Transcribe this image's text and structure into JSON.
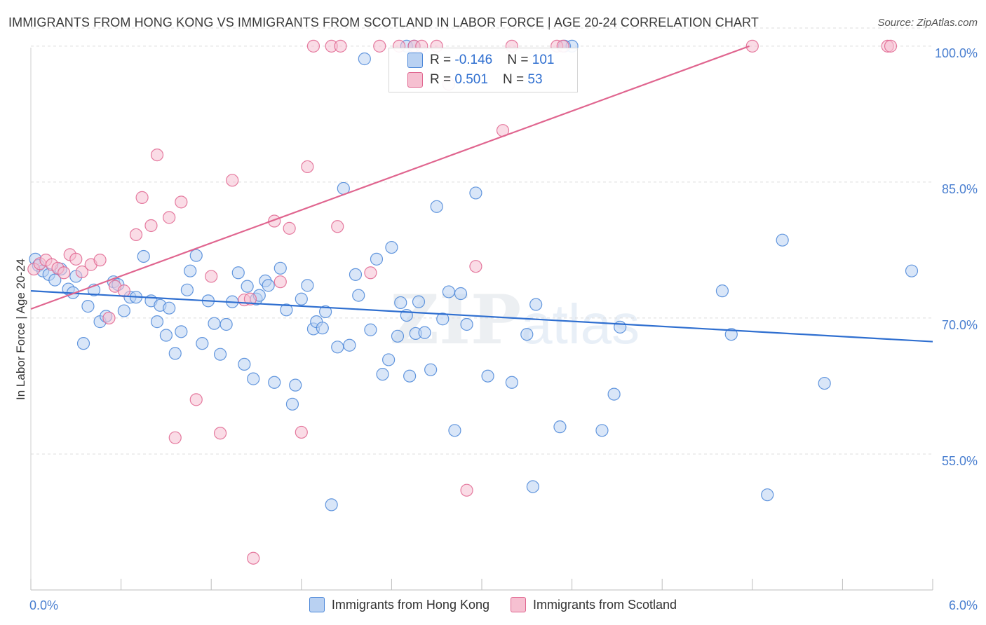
{
  "title": "IMMIGRANTS FROM HONG KONG VS IMMIGRANTS FROM SCOTLAND IN LABOR FORCE | AGE 20-24 CORRELATION CHART",
  "source": "Source: ZipAtlas.com",
  "watermark": {
    "bold": "ZIP",
    "thin": "atlas"
  },
  "colors": {
    "blue": "#4a86d8",
    "blue_fill": "#b9d1f2",
    "pink": "#e0658f",
    "pink_fill": "#f6c0d1",
    "tick": "#4a7fd0"
  },
  "stats": [
    {
      "r_label": "R = ",
      "r": "-0.146",
      "n_label": "N = ",
      "n": "101"
    },
    {
      "r_label": "R = ",
      "r": " 0.501",
      "n_label": "N = ",
      "n": " 53"
    }
  ],
  "legend": [
    {
      "label": "Immigrants from Hong Kong"
    },
    {
      "label": "Immigrants from Scotland"
    }
  ],
  "chart_data": {
    "type": "scatter",
    "title": "IMMIGRANTS FROM HONG KONG VS IMMIGRANTS FROM SCOTLAND IN LABOR FORCE | AGE 20-24 CORRELATION CHART",
    "xlabel": "",
    "ylabel": "In Labor Force | Age 20-24",
    "xlim": [
      0,
      6
    ],
    "ylim": [
      40,
      102
    ],
    "x_tick_labels": [
      "0.0%",
      "6.0%"
    ],
    "y_ticks": [
      55,
      70,
      85,
      100
    ],
    "y_tick_labels": [
      "55.0%",
      "70.0%",
      "85.0%",
      "100.0%"
    ],
    "grid": true,
    "legend_position": "bottom",
    "series": [
      {
        "name": "Immigrants from Hong Kong",
        "trend": {
          "x": [
            0,
            6
          ],
          "y": [
            73.0,
            67.4
          ]
        },
        "points": [
          [
            0.03,
            76.5
          ],
          [
            0.05,
            75.8
          ],
          [
            0.08,
            75.2
          ],
          [
            0.12,
            74.8
          ],
          [
            0.16,
            74.2
          ],
          [
            0.2,
            75.4
          ],
          [
            0.25,
            73.2
          ],
          [
            0.28,
            72.8
          ],
          [
            0.3,
            74.6
          ],
          [
            0.35,
            67.2
          ],
          [
            0.38,
            71.3
          ],
          [
            0.42,
            73.1
          ],
          [
            0.46,
            69.6
          ],
          [
            0.5,
            70.2
          ],
          [
            0.55,
            74.0
          ],
          [
            0.58,
            73.7
          ],
          [
            0.62,
            70.8
          ],
          [
            0.66,
            72.3
          ],
          [
            0.7,
            72.3
          ],
          [
            0.75,
            76.8
          ],
          [
            0.8,
            71.9
          ],
          [
            0.84,
            69.6
          ],
          [
            0.86,
            71.4
          ],
          [
            0.9,
            68.1
          ],
          [
            0.92,
            71.1
          ],
          [
            0.96,
            66.1
          ],
          [
            1.0,
            68.5
          ],
          [
            1.04,
            73.1
          ],
          [
            1.06,
            75.2
          ],
          [
            1.1,
            76.9
          ],
          [
            1.14,
            67.2
          ],
          [
            1.18,
            71.9
          ],
          [
            1.22,
            69.4
          ],
          [
            1.26,
            66.0
          ],
          [
            1.3,
            69.3
          ],
          [
            1.34,
            71.8
          ],
          [
            1.38,
            75.0
          ],
          [
            1.42,
            64.9
          ],
          [
            1.44,
            73.5
          ],
          [
            1.48,
            63.3
          ],
          [
            1.5,
            72.1
          ],
          [
            1.52,
            72.5
          ],
          [
            1.56,
            74.1
          ],
          [
            1.58,
            73.6
          ],
          [
            1.62,
            62.9
          ],
          [
            1.66,
            75.5
          ],
          [
            1.7,
            70.9
          ],
          [
            1.74,
            60.5
          ],
          [
            1.76,
            62.6
          ],
          [
            1.8,
            72.1
          ],
          [
            1.84,
            73.6
          ],
          [
            1.88,
            68.8
          ],
          [
            1.9,
            69.6
          ],
          [
            1.94,
            68.9
          ],
          [
            1.96,
            70.7
          ],
          [
            2.0,
            49.4
          ],
          [
            2.04,
            66.8
          ],
          [
            2.08,
            84.3
          ],
          [
            2.12,
            67.0
          ],
          [
            2.16,
            74.8
          ],
          [
            2.18,
            72.5
          ],
          [
            2.22,
            98.6
          ],
          [
            2.26,
            68.7
          ],
          [
            2.3,
            76.5
          ],
          [
            2.34,
            63.8
          ],
          [
            2.38,
            65.4
          ],
          [
            2.4,
            77.8
          ],
          [
            2.44,
            68.0
          ],
          [
            2.46,
            71.7
          ],
          [
            2.5,
            70.3
          ],
          [
            2.52,
            63.6
          ],
          [
            2.56,
            68.3
          ],
          [
            2.58,
            71.8
          ],
          [
            2.62,
            68.4
          ],
          [
            2.66,
            64.3
          ],
          [
            2.7,
            82.3
          ],
          [
            2.74,
            69.9
          ],
          [
            2.78,
            72.9
          ],
          [
            2.82,
            57.6
          ],
          [
            2.86,
            72.7
          ],
          [
            2.9,
            69.3
          ],
          [
            2.96,
            83.8
          ],
          [
            3.04,
            63.6
          ],
          [
            3.2,
            62.9
          ],
          [
            3.3,
            68.2
          ],
          [
            3.34,
            51.4
          ],
          [
            3.36,
            71.5
          ],
          [
            3.52,
            58.0
          ],
          [
            3.8,
            57.6
          ],
          [
            3.88,
            61.6
          ],
          [
            3.92,
            69.0
          ],
          [
            4.6,
            73.0
          ],
          [
            4.66,
            68.2
          ],
          [
            4.9,
            50.5
          ],
          [
            5.0,
            78.6
          ],
          [
            5.28,
            62.8
          ],
          [
            5.86,
            75.2
          ],
          [
            2.5,
            100.0
          ],
          [
            3.6,
            100.0
          ],
          [
            3.55,
            100.0
          ],
          [
            2.55,
            100.0
          ]
        ]
      },
      {
        "name": "Immigrants from Scotland",
        "trend": {
          "x": [
            0,
            4.78
          ],
          "y": [
            71.0,
            100.0
          ]
        },
        "points": [
          [
            0.02,
            75.4
          ],
          [
            0.06,
            76.0
          ],
          [
            0.1,
            76.4
          ],
          [
            0.14,
            75.9
          ],
          [
            0.18,
            75.5
          ],
          [
            0.22,
            75.0
          ],
          [
            0.26,
            77.0
          ],
          [
            0.3,
            76.5
          ],
          [
            0.34,
            75.1
          ],
          [
            0.4,
            75.9
          ],
          [
            0.46,
            76.4
          ],
          [
            0.52,
            70.0
          ],
          [
            0.56,
            73.5
          ],
          [
            0.62,
            73.0
          ],
          [
            0.7,
            79.2
          ],
          [
            0.74,
            83.3
          ],
          [
            0.8,
            80.2
          ],
          [
            0.84,
            88.0
          ],
          [
            0.92,
            81.1
          ],
          [
            0.96,
            56.8
          ],
          [
            1.0,
            82.8
          ],
          [
            1.1,
            61.0
          ],
          [
            1.2,
            74.6
          ],
          [
            1.26,
            57.3
          ],
          [
            1.34,
            85.2
          ],
          [
            1.42,
            72.0
          ],
          [
            1.46,
            72.1
          ],
          [
            1.48,
            43.5
          ],
          [
            1.62,
            80.7
          ],
          [
            1.66,
            74.0
          ],
          [
            1.72,
            79.9
          ],
          [
            1.8,
            57.4
          ],
          [
            1.84,
            86.7
          ],
          [
            1.88,
            100.0
          ],
          [
            2.0,
            100.0
          ],
          [
            2.04,
            80.1
          ],
          [
            2.06,
            100.0
          ],
          [
            2.26,
            75.0
          ],
          [
            2.32,
            100.0
          ],
          [
            2.45,
            100.0
          ],
          [
            2.55,
            100.0
          ],
          [
            2.6,
            100.0
          ],
          [
            2.7,
            100.0
          ],
          [
            2.78,
            95.8
          ],
          [
            2.9,
            51.0
          ],
          [
            2.96,
            75.7
          ],
          [
            3.14,
            90.7
          ],
          [
            3.2,
            100.0
          ],
          [
            3.5,
            100.0
          ],
          [
            3.54,
            100.0
          ],
          [
            4.8,
            100.0
          ],
          [
            5.7,
            100.0
          ],
          [
            5.72,
            100.0
          ]
        ]
      }
    ]
  }
}
